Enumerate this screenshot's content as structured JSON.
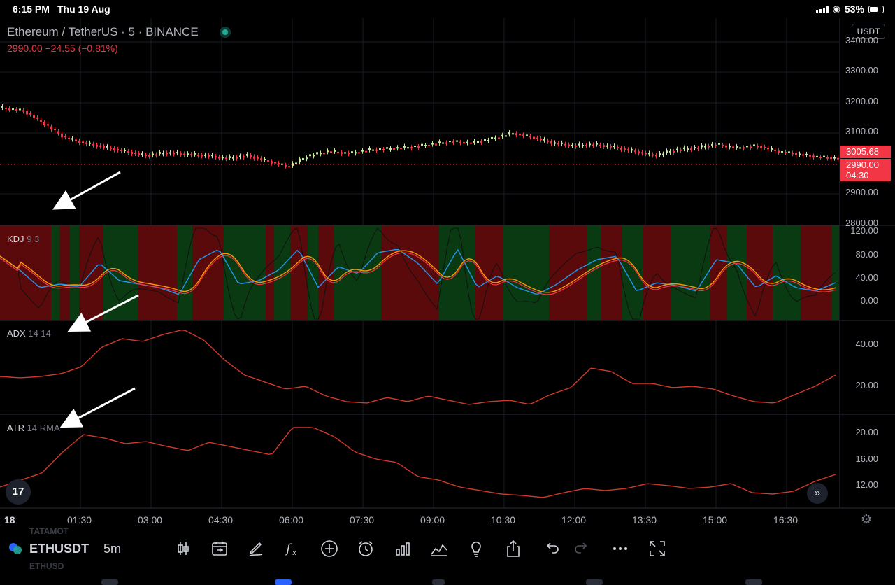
{
  "status": {
    "time": "6:15 PM",
    "date": "Thu 19 Aug",
    "battery": "53%"
  },
  "header": {
    "symbol_title": "Ethereum / TetherUS · 5 · BINANCE",
    "price_line": "2990.00  −24.55 (−0.81%)",
    "currency_button": "USDT"
  },
  "price_axis": [
    "3400.00",
    "3300.00",
    "3200.00",
    "3100.00",
    "2900.00",
    "2800.00"
  ],
  "price_tags": {
    "high_tag": "3005.68",
    "last_price": "2990.00",
    "countdown": "04:30"
  },
  "indicators": {
    "kdj": {
      "name": "KDJ",
      "params": "9 3",
      "axis": [
        "120.00",
        "80.00",
        "40.00",
        "0.00"
      ]
    },
    "adx": {
      "name": "ADX",
      "params": "14 14",
      "axis": [
        "40.00",
        "20.00"
      ]
    },
    "atr": {
      "name": "ATR",
      "params": "14 RMA",
      "axis": [
        "20.00",
        "16.00",
        "12.00"
      ]
    }
  },
  "time_axis": [
    "18",
    "01:30",
    "03:00",
    "04:30",
    "06:00",
    "07:30",
    "09:00",
    "10:30",
    "12:00",
    "13:30",
    "15:00",
    "16:30"
  ],
  "toolbar": {
    "symbol": "ETHUSDT",
    "interval": "5m",
    "icons": [
      "candles-icon",
      "compare-calendar-icon",
      "draw-icon",
      "indicators-icon",
      "add-icon",
      "alert-icon",
      "bars-icon",
      "ideas-icon",
      "lightbulb-icon",
      "share-icon",
      "undo-icon",
      "redo-icon",
      "more-icon",
      "fullscreen-icon"
    ],
    "ghost_above": "TATAMOT",
    "ghost_below": "ETHUSD"
  },
  "logo": "17",
  "colors": {
    "up": "#c8e6a0",
    "down": "#f23645",
    "kdj_bull_bg": "#0a3a12",
    "kdj_bear_bg": "#5a0a0a",
    "k_line": "#2196f3",
    "d_line": "#ff9800",
    "j_line": "#111111",
    "adx_line": "#d2392b",
    "atr_line": "#d2392b"
  }
}
